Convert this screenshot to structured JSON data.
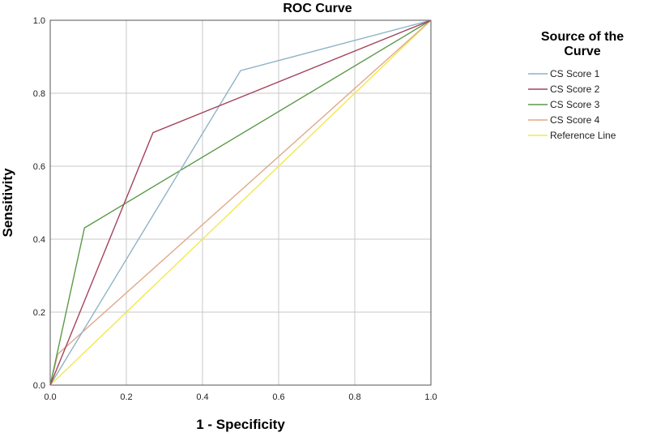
{
  "chart_data": {
    "type": "line",
    "title": "ROC Curve",
    "xlabel": "1 - Specificity",
    "ylabel": "Sensitivity",
    "xlim": [
      0,
      1
    ],
    "ylim": [
      0,
      1
    ],
    "grid": true,
    "x_ticks": [
      "0.0",
      "0.2",
      "0.4",
      "0.6",
      "0.8",
      "1.0"
    ],
    "y_ticks": [
      "0.0",
      "0.2",
      "0.4",
      "0.6",
      "0.8",
      "1.0"
    ],
    "legend": {
      "title_lines": [
        "Source of the",
        "Curve"
      ],
      "placement": "right"
    },
    "series": [
      {
        "name": "CS Score 1",
        "color": "#8fb3c6",
        "x": [
          0,
          0.5,
          1
        ],
        "y": [
          0,
          0.862,
          1
        ]
      },
      {
        "name": "CS Score 2",
        "color": "#a4445c",
        "x": [
          0,
          0.27,
          1
        ],
        "y": [
          0,
          0.692,
          1
        ]
      },
      {
        "name": "CS Score 3",
        "color": "#5c9a4a",
        "x": [
          0,
          0.09,
          1
        ],
        "y": [
          0,
          0.431,
          1
        ]
      },
      {
        "name": "CS Score 4",
        "color": "#e0a98a",
        "x": [
          0,
          0.02,
          1
        ],
        "y": [
          0,
          0.085,
          1
        ]
      },
      {
        "name": "Reference Line",
        "color": "#f2e84a",
        "x": [
          0,
          1
        ],
        "y": [
          0,
          1
        ]
      }
    ]
  }
}
